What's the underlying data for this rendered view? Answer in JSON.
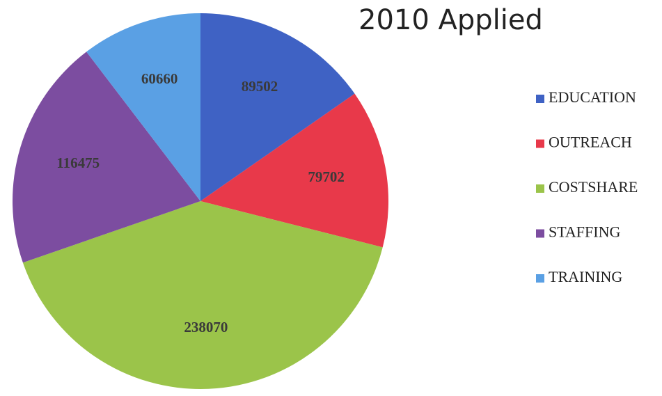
{
  "chart_data": {
    "type": "pie",
    "title": "2010 Applied",
    "categories": [
      "EDUCATION",
      "OUTREACH",
      "COSTSHARE",
      "STAFFING",
      "TRAINING"
    ],
    "values": [
      89502,
      79702,
      238070,
      116475,
      60660
    ],
    "colors": [
      "#3f62c4",
      "#e8394a",
      "#9bc44a",
      "#7c4da0",
      "#5aa0e4"
    ],
    "legend": "right"
  }
}
